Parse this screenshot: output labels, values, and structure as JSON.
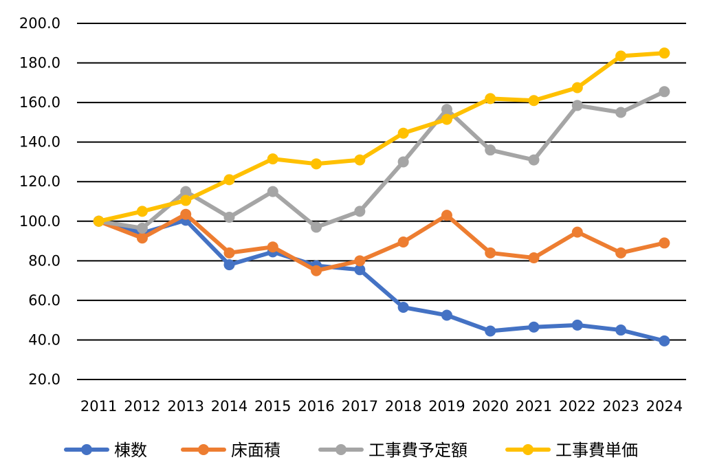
{
  "chart_data": {
    "type": "line",
    "title": "",
    "xlabel": "",
    "ylabel": "",
    "ylim": [
      20,
      200
    ],
    "yticks": [
      "200.0",
      "180.0",
      "160.0",
      "140.0",
      "120.0",
      "100.0",
      "80.0",
      "60.0",
      "40.0",
      "20.0"
    ],
    "grid": true,
    "legend_position": "bottom",
    "categories": [
      "2011",
      "2012",
      "2013",
      "2014",
      "2015",
      "2016",
      "2017",
      "2018",
      "2019",
      "2020",
      "2021",
      "2022",
      "2023",
      "2024"
    ],
    "series": [
      {
        "name": "棟数",
        "color": "#4472C4",
        "values": [
          100.0,
          94.0,
          100.5,
          78.0,
          84.5,
          77.5,
          75.5,
          56.5,
          52.5,
          44.5,
          46.5,
          47.5,
          45.0,
          39.5
        ]
      },
      {
        "name": "床面積",
        "color": "#ED7D31",
        "values": [
          100.0,
          91.5,
          103.5,
          84.0,
          87.0,
          75.0,
          80.0,
          89.5,
          103.0,
          84.0,
          81.5,
          94.5,
          84.0,
          89.0
        ]
      },
      {
        "name": "工事費予定額",
        "color": "#A5A5A5",
        "values": [
          100.0,
          96.5,
          115.0,
          102.0,
          115.0,
          97.0,
          105.0,
          130.0,
          156.5,
          136.0,
          131.0,
          158.5,
          155.0,
          165.5
        ]
      },
      {
        "name": "工事費単価",
        "color": "#FFC000",
        "values": [
          100.0,
          105.0,
          110.5,
          121.0,
          131.5,
          129.0,
          131.0,
          144.5,
          151.5,
          162.0,
          161.0,
          167.5,
          183.5,
          185.0
        ]
      }
    ]
  }
}
